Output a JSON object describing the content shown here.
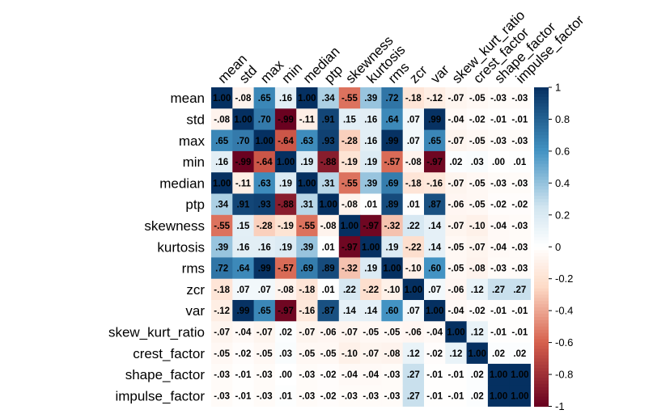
{
  "chart_data": {
    "type": "heatmap",
    "title": "",
    "variables": [
      "mean",
      "std",
      "max",
      "min",
      "median",
      "ptp",
      "skewness",
      "kurtosis",
      "rms",
      "zcr",
      "var",
      "skew_kurt_ratio",
      "crest_factor",
      "shape_factor",
      "impulse_factor"
    ],
    "values": [
      [
        1.0,
        -0.08,
        0.65,
        0.16,
        1.0,
        0.34,
        -0.55,
        0.39,
        0.72,
        -0.18,
        -0.12,
        -0.07,
        -0.05,
        -0.03,
        -0.03
      ],
      [
        -0.08,
        1.0,
        0.7,
        -0.99,
        -0.11,
        0.91,
        0.15,
        0.16,
        0.64,
        0.07,
        0.99,
        -0.04,
        -0.02,
        -0.01,
        -0.01
      ],
      [
        0.65,
        0.7,
        1.0,
        -0.64,
        0.63,
        0.93,
        -0.28,
        0.16,
        0.99,
        0.07,
        0.65,
        -0.07,
        -0.05,
        -0.03,
        -0.03
      ],
      [
        0.16,
        -0.99,
        -0.64,
        1.0,
        0.19,
        -0.88,
        -0.19,
        0.19,
        -0.57,
        -0.08,
        -0.97,
        0.02,
        0.03,
        0.0,
        0.01
      ],
      [
        1.0,
        -0.11,
        0.63,
        0.19,
        1.0,
        0.31,
        -0.55,
        0.39,
        0.69,
        -0.18,
        -0.16,
        -0.07,
        -0.05,
        -0.03,
        -0.03
      ],
      [
        0.34,
        0.91,
        0.93,
        -0.88,
        0.31,
        1.0,
        -0.08,
        0.01,
        0.89,
        0.01,
        0.87,
        -0.06,
        -0.05,
        -0.02,
        -0.02
      ],
      [
        -0.55,
        0.15,
        -0.28,
        -0.19,
        -0.55,
        -0.08,
        1.0,
        -0.97,
        -0.32,
        0.22,
        0.14,
        -0.07,
        -0.1,
        -0.04,
        -0.03
      ],
      [
        0.39,
        0.16,
        0.16,
        0.19,
        0.39,
        0.01,
        -0.97,
        1.0,
        0.19,
        -0.22,
        0.14,
        -0.05,
        -0.07,
        -0.04,
        -0.03
      ],
      [
        0.72,
        0.64,
        0.99,
        -0.57,
        0.69,
        0.89,
        -0.32,
        0.19,
        1.0,
        -0.1,
        0.6,
        -0.05,
        -0.08,
        -0.03,
        -0.03
      ],
      [
        -0.18,
        0.07,
        0.07,
        -0.08,
        -0.18,
        0.01,
        0.22,
        -0.22,
        -0.1,
        1.0,
        0.07,
        -0.06,
        0.12,
        0.27,
        0.27
      ],
      [
        -0.12,
        0.99,
        0.65,
        -0.97,
        -0.16,
        0.87,
        0.14,
        0.14,
        0.6,
        0.07,
        1.0,
        -0.04,
        -0.02,
        -0.01,
        -0.01
      ],
      [
        -0.07,
        -0.04,
        -0.07,
        0.02,
        -0.07,
        -0.06,
        -0.07,
        -0.05,
        -0.05,
        -0.06,
        -0.04,
        1.0,
        0.12,
        -0.01,
        -0.01
      ],
      [
        -0.05,
        -0.02,
        -0.05,
        0.03,
        -0.05,
        -0.05,
        -0.1,
        -0.07,
        -0.08,
        0.12,
        -0.02,
        0.12,
        1.0,
        0.02,
        0.02
      ],
      [
        -0.03,
        -0.01,
        -0.03,
        0.0,
        -0.03,
        -0.02,
        -0.04,
        -0.04,
        -0.03,
        0.27,
        -0.01,
        -0.01,
        0.02,
        1.0,
        1.0
      ],
      [
        -0.03,
        -0.01,
        -0.03,
        0.01,
        -0.03,
        -0.02,
        -0.03,
        -0.03,
        -0.03,
        0.27,
        -0.01,
        -0.01,
        0.02,
        1.0,
        1.0
      ]
    ],
    "colorbar": {
      "range": [
        -1,
        1
      ],
      "ticks": [
        1,
        0.8,
        0.6,
        0.4,
        0.2,
        0,
        -0.2,
        -0.4,
        -0.6,
        -0.8,
        -1
      ],
      "colors": {
        "neg_end": "#67001F",
        "neg_mid": "#D6604D",
        "neg_light": "#FDDBC7",
        "zero": "#FFFFFF",
        "pos_light": "#D1E5F0",
        "pos_mid": "#4393C3",
        "pos_end": "#053061"
      }
    },
    "legend": "right",
    "grid": false
  }
}
